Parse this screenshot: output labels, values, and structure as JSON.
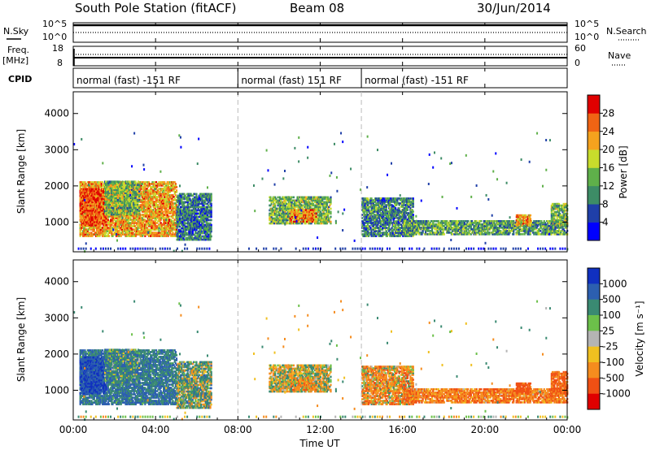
{
  "header": {
    "title": "South Pole Station (fitACF)",
    "beam": "Beam 08",
    "date": "30/Jun/2014"
  },
  "panels": {
    "nsky": {
      "left_label": "N.Sky",
      "right_label": "N.Search",
      "left_ticks": [
        "10^5",
        "10^0"
      ],
      "right_ticks": [
        "10^5",
        "10^0"
      ]
    },
    "freq": {
      "left_label": "Freq.",
      "left_unit": "[MHz]",
      "right_label": "Nave",
      "left_ticks": [
        "18",
        "8"
      ],
      "right_ticks": [
        "60",
        "0"
      ]
    },
    "cpid": {
      "label": "CPID",
      "segments": [
        {
          "text": "normal (fast) -151 RF",
          "start_hour": 0,
          "end_hour": 8
        },
        {
          "text": "normal (fast) 151 RF",
          "start_hour": 8,
          "end_hour": 14
        },
        {
          "text": "normal (fast) -151 RF",
          "start_hour": 14,
          "end_hour": 24
        }
      ]
    }
  },
  "xaxis": {
    "label": "Time UT",
    "range_hours": [
      0,
      24
    ],
    "ticks": [
      "00:00",
      "04:00",
      "08:00",
      "12:00",
      "16:00",
      "20:00",
      "00:00"
    ]
  },
  "yaxis": {
    "label": "Slant Range [km]",
    "range_km": [
      180,
      4600
    ],
    "ticks": [
      "1000",
      "2000",
      "3000",
      "4000"
    ]
  },
  "power_colorbar": {
    "label": "Power [dB]",
    "range": [
      0,
      32
    ],
    "ticks": [
      "4",
      "8",
      "12",
      "16",
      "20",
      "24",
      "28"
    ],
    "colors": [
      "#0000ff",
      "#1f3fa8",
      "#3d8c66",
      "#5fb04a",
      "#c8dc2c",
      "#f5a21e",
      "#f06414",
      "#e00000"
    ]
  },
  "velocity_colorbar": {
    "label": "Velocity [m s⁻¹]",
    "ticks": [
      "1000",
      "500",
      "100",
      "25",
      "-25",
      "-100",
      "-500",
      "-1000"
    ],
    "colors": [
      "#1030c0",
      "#2c5fb0",
      "#3a8a72",
      "#6cc04a",
      "#b4b4b4",
      "#f0c020",
      "#f58c1e",
      "#f05014",
      "#e00000"
    ]
  },
  "chart_data": {
    "type": "heatmap",
    "title": "South Pole Station (fitACF)",
    "xlabel": "Time UT",
    "ylabel": "Slant Range [km]",
    "xlim_hours": [
      0,
      24
    ],
    "ylim_km": [
      180,
      4600
    ],
    "gap_hours": [
      6.7,
      8.3
    ],
    "mode_change_hours": [
      8,
      14
    ],
    "echo_regions": [
      {
        "t0": 0.3,
        "t1": 5.0,
        "r0": 600,
        "r1": 2100,
        "power_db": 22,
        "velocity": 300
      },
      {
        "t0": 0.3,
        "t1": 1.6,
        "r0": 900,
        "r1": 1900,
        "power_db": 27,
        "velocity": 700
      },
      {
        "t0": 1.5,
        "t1": 3.2,
        "r0": 1200,
        "r1": 2100,
        "power_db": 14,
        "velocity": 200
      },
      {
        "t0": 5.0,
        "t1": 6.7,
        "r0": 500,
        "r1": 1800,
        "power_db": 9,
        "velocity": 100
      },
      {
        "t0": 9.5,
        "t1": 12.5,
        "r0": 950,
        "r1": 1700,
        "power_db": 14,
        "velocity": -50
      },
      {
        "t0": 10.5,
        "t1": 11.8,
        "r0": 1000,
        "r1": 1350,
        "power_db": 24,
        "velocity": -120
      },
      {
        "t0": 14.0,
        "t1": 16.5,
        "r0": 600,
        "r1": 1650,
        "power_db": 10,
        "velocity": -150
      },
      {
        "t0": 16.0,
        "t1": 24.0,
        "r0": 650,
        "r1": 1050,
        "power_db": 12,
        "velocity": -250
      },
      {
        "t0": 21.5,
        "t1": 22.2,
        "r0": 900,
        "r1": 1200,
        "power_db": 22,
        "velocity": -500
      },
      {
        "t0": 23.2,
        "t1": 24.0,
        "r0": 900,
        "r1": 1500,
        "power_db": 14,
        "velocity": -400
      }
    ]
  }
}
